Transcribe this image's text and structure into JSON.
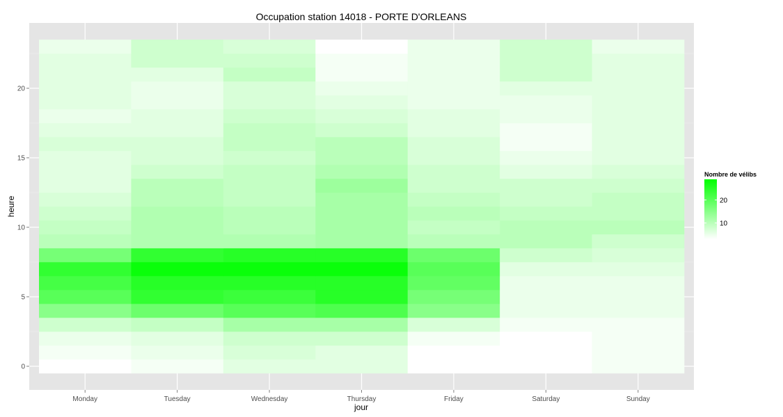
{
  "chart_data": {
    "type": "heatmap",
    "title": "Occupation station 14018 - PORTE D'ORLEANS",
    "xlabel": "jour",
    "ylabel": "heure",
    "x_categories": [
      "Monday",
      "Tuesday",
      "Wednesday",
      "Thursday",
      "Friday",
      "Saturday",
      "Sunday"
    ],
    "y_values": [
      0,
      1,
      2,
      3,
      4,
      5,
      6,
      7,
      8,
      9,
      10,
      11,
      12,
      13,
      14,
      15,
      16,
      17,
      18,
      19,
      20,
      21,
      22,
      23
    ],
    "y_ticks": [
      0,
      5,
      10,
      15,
      20
    ],
    "ylim": [
      -0.5,
      23.5
    ],
    "legend": {
      "title": "Nombre de vélibs",
      "ticks": [
        10,
        20
      ],
      "range": [
        3,
        29
      ],
      "color_low": "#ffffff",
      "color_high": "#00ff00",
      "placement": "right"
    },
    "grid": true,
    "panel_background": "#e5e5e5",
    "values": [
      [
        3,
        4,
        6,
        6,
        3,
        3,
        4
      ],
      [
        4,
        5,
        7,
        6,
        3,
        3,
        4
      ],
      [
        5,
        6,
        8,
        8,
        4,
        3,
        4
      ],
      [
        8,
        9,
        12,
        12,
        7,
        4,
        4
      ],
      [
        15,
        18,
        20,
        21,
        15,
        5,
        5
      ],
      [
        20,
        24,
        23,
        25,
        17,
        5,
        5
      ],
      [
        22,
        25,
        25,
        25,
        19,
        5,
        5
      ],
      [
        24,
        28,
        28,
        28,
        20,
        6,
        6
      ],
      [
        17,
        24,
        25,
        25,
        18,
        8,
        7
      ],
      [
        10,
        11,
        11,
        12,
        10,
        10,
        8
      ],
      [
        9,
        11,
        10,
        12,
        9,
        10,
        10
      ],
      [
        8,
        11,
        10,
        12,
        10,
        9,
        9
      ],
      [
        7,
        10,
        9,
        12,
        9,
        8,
        9
      ],
      [
        6,
        10,
        9,
        13,
        8,
        8,
        8
      ],
      [
        6,
        8,
        9,
        11,
        8,
        6,
        7
      ],
      [
        6,
        7,
        8,
        10,
        7,
        5,
        6
      ],
      [
        7,
        7,
        9,
        10,
        7,
        4,
        6
      ],
      [
        6,
        6,
        9,
        8,
        6,
        4,
        6
      ],
      [
        5,
        6,
        8,
        7,
        6,
        5,
        6
      ],
      [
        6,
        5,
        7,
        6,
        5,
        5,
        6
      ],
      [
        6,
        5,
        7,
        5,
        5,
        6,
        6
      ],
      [
        6,
        6,
        9,
        4,
        5,
        8,
        6
      ],
      [
        6,
        8,
        8,
        4,
        5,
        8,
        6
      ],
      [
        5,
        8,
        7,
        3,
        5,
        8,
        5
      ]
    ]
  }
}
